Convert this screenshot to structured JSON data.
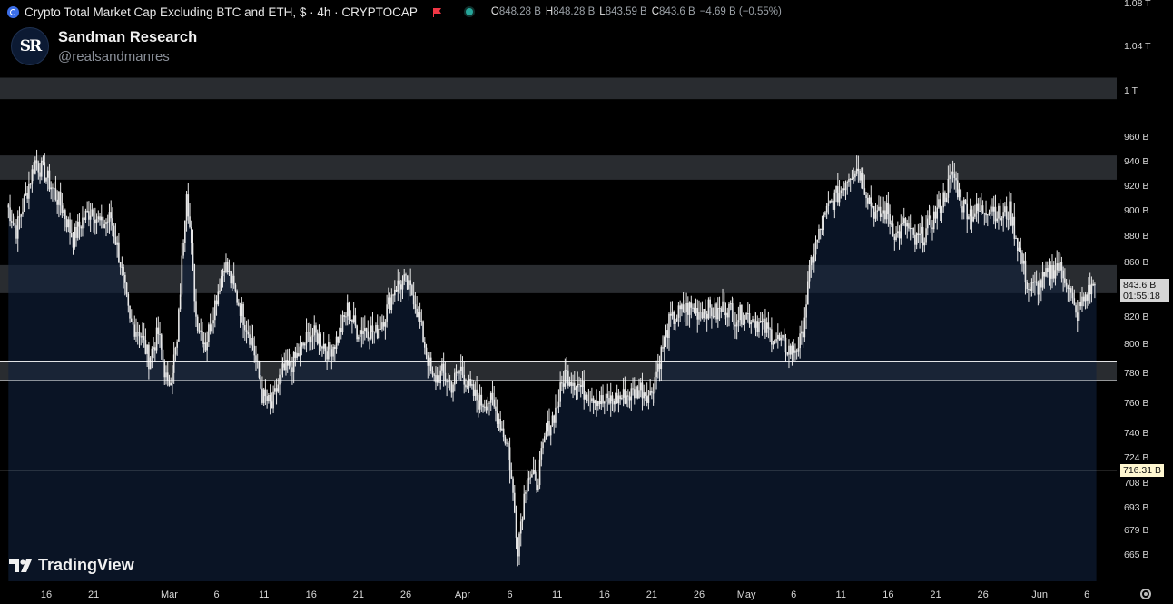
{
  "header": {
    "title": "Crypto Total Market Cap Excluding BTC and ETH, $ · 4h · CRYPTOCAP",
    "ohlc": {
      "o_label": "O",
      "o": "848.28 B",
      "h_label": "H",
      "h": "848.28 B",
      "l_label": "L",
      "l": "843.59 B",
      "c_label": "C",
      "c": "843.6 B",
      "change": "−4.69 B (−0.55%)"
    },
    "accent_color": "#3b6ee8",
    "flag_color": "#f23645",
    "status_color": "#26a69a"
  },
  "brand": {
    "logo_text": "SR",
    "name": "Sandman Research",
    "handle": "@realsandmanres"
  },
  "watermark": "TradingView",
  "price_label": {
    "value": "843.6 B",
    "countdown": "01:55:18"
  },
  "level_label": {
    "value": "716.31 B"
  },
  "chart_data": {
    "type": "candlestick",
    "y_scale": "log",
    "ylim": [
      651,
      1090
    ],
    "y_ticks": [
      "1.08 T",
      "1.04 T",
      "1 T",
      "960 B",
      "940 B",
      "920 B",
      "900 B",
      "880 B",
      "860 B",
      "820 B",
      "800 B",
      "780 B",
      "760 B",
      "740 B",
      "724 B",
      "708 B",
      "693 B",
      "679 B",
      "665 B"
    ],
    "y_tick_values": [
      1080,
      1040,
      1000,
      960,
      940,
      920,
      900,
      880,
      860,
      820,
      800,
      780,
      760,
      740,
      724,
      708,
      693,
      679,
      665
    ],
    "x_ticks": [
      "16",
      "21",
      "Mar",
      "6",
      "11",
      "16",
      "21",
      "26",
      "Apr",
      "6",
      "11",
      "16",
      "21",
      "26",
      "May",
      "6",
      "11",
      "16",
      "21",
      "26",
      "Jun",
      "6"
    ],
    "x_tick_dates": [
      "2025-02-16",
      "2025-02-21",
      "2025-03-01",
      "2025-03-06",
      "2025-03-11",
      "2025-03-16",
      "2025-03-21",
      "2025-03-26",
      "2025-04-01",
      "2025-04-06",
      "2025-04-11",
      "2025-04-16",
      "2025-04-21",
      "2025-04-26",
      "2025-05-01",
      "2025-05-06",
      "2025-05-11",
      "2025-05-16",
      "2025-05-21",
      "2025-05-26",
      "2025-06-01",
      "2025-06-06"
    ],
    "close_path": [
      [
        "2025-02-12",
        905
      ],
      [
        "2025-02-13",
        885
      ],
      [
        "2025-02-14",
        912
      ],
      [
        "2025-02-15",
        940
      ],
      [
        "2025-02-16",
        930
      ],
      [
        "2025-02-17",
        915
      ],
      [
        "2025-02-18",
        900
      ],
      [
        "2025-02-19",
        878
      ],
      [
        "2025-02-20",
        893
      ],
      [
        "2025-02-21",
        902
      ],
      [
        "2025-02-22",
        888
      ],
      [
        "2025-02-23",
        895
      ],
      [
        "2025-02-24",
        860
      ],
      [
        "2025-02-25",
        815
      ],
      [
        "2025-02-26",
        810
      ],
      [
        "2025-02-27",
        790
      ],
      [
        "2025-02-28",
        808
      ],
      [
        "2025-03-01",
        770
      ],
      [
        "2025-03-02",
        800
      ],
      [
        "2025-03-03",
        920
      ],
      [
        "2025-03-04",
        820
      ],
      [
        "2025-03-05",
        800
      ],
      [
        "2025-03-06",
        830
      ],
      [
        "2025-03-07",
        860
      ],
      [
        "2025-03-08",
        840
      ],
      [
        "2025-03-09",
        820
      ],
      [
        "2025-03-10",
        800
      ],
      [
        "2025-03-11",
        765
      ],
      [
        "2025-03-12",
        757
      ],
      [
        "2025-03-13",
        780
      ],
      [
        "2025-03-14",
        785
      ],
      [
        "2025-03-15",
        795
      ],
      [
        "2025-03-16",
        808
      ],
      [
        "2025-03-17",
        805
      ],
      [
        "2025-03-18",
        795
      ],
      [
        "2025-03-19",
        805
      ],
      [
        "2025-03-20",
        825
      ],
      [
        "2025-03-21",
        810
      ],
      [
        "2025-03-22",
        812
      ],
      [
        "2025-03-23",
        808
      ],
      [
        "2025-03-24",
        822
      ],
      [
        "2025-03-25",
        842
      ],
      [
        "2025-03-26",
        845
      ],
      [
        "2025-03-27",
        835
      ],
      [
        "2025-03-28",
        805
      ],
      [
        "2025-03-29",
        775
      ],
      [
        "2025-03-30",
        780
      ],
      [
        "2025-03-31",
        772
      ],
      [
        "2025-04-01",
        783
      ],
      [
        "2025-04-02",
        768
      ],
      [
        "2025-04-03",
        760
      ],
      [
        "2025-04-04",
        762
      ],
      [
        "2025-04-05",
        750
      ],
      [
        "2025-04-06",
        730
      ],
      [
        "2025-04-07",
        670
      ],
      [
        "2025-04-08",
        715
      ],
      [
        "2025-04-09",
        708
      ],
      [
        "2025-04-10",
        740
      ],
      [
        "2025-04-11",
        755
      ],
      [
        "2025-04-12",
        780
      ],
      [
        "2025-04-13",
        775
      ],
      [
        "2025-04-14",
        768
      ],
      [
        "2025-04-15",
        765
      ],
      [
        "2025-04-16",
        760
      ],
      [
        "2025-04-17",
        762
      ],
      [
        "2025-04-18",
        764
      ],
      [
        "2025-04-19",
        766
      ],
      [
        "2025-04-20",
        770
      ],
      [
        "2025-04-21",
        765
      ],
      [
        "2025-04-22",
        790
      ],
      [
        "2025-04-23",
        815
      ],
      [
        "2025-04-24",
        822
      ],
      [
        "2025-04-25",
        826
      ],
      [
        "2025-04-26",
        824
      ],
      [
        "2025-04-27",
        826
      ],
      [
        "2025-04-28",
        822
      ],
      [
        "2025-04-29",
        828
      ],
      [
        "2025-04-30",
        820
      ],
      [
        "2025-05-01",
        822
      ],
      [
        "2025-05-02",
        818
      ],
      [
        "2025-05-03",
        812
      ],
      [
        "2025-05-04",
        806
      ],
      [
        "2025-05-05",
        800
      ],
      [
        "2025-05-06",
        795
      ],
      [
        "2025-05-07",
        803
      ],
      [
        "2025-05-08",
        860
      ],
      [
        "2025-05-09",
        885
      ],
      [
        "2025-05-10",
        905
      ],
      [
        "2025-05-11",
        915
      ],
      [
        "2025-05-12",
        930
      ],
      [
        "2025-05-13",
        935
      ],
      [
        "2025-05-14",
        912
      ],
      [
        "2025-05-15",
        895
      ],
      [
        "2025-05-16",
        900
      ],
      [
        "2025-05-17",
        880
      ],
      [
        "2025-05-18",
        890
      ],
      [
        "2025-05-19",
        875
      ],
      [
        "2025-05-20",
        882
      ],
      [
        "2025-05-21",
        895
      ],
      [
        "2025-05-22",
        910
      ],
      [
        "2025-05-23",
        930
      ],
      [
        "2025-05-24",
        905
      ],
      [
        "2025-05-25",
        898
      ],
      [
        "2025-05-26",
        900
      ],
      [
        "2025-05-27",
        905
      ],
      [
        "2025-05-28",
        895
      ],
      [
        "2025-05-29",
        900
      ],
      [
        "2025-05-30",
        870
      ],
      [
        "2025-05-31",
        840
      ],
      [
        "2025-06-01",
        842
      ],
      [
        "2025-06-02",
        850
      ],
      [
        "2025-06-03",
        858
      ],
      [
        "2025-06-04",
        848
      ],
      [
        "2025-06-05",
        820
      ],
      [
        "2025-06-06",
        835
      ],
      [
        "2025-06-07",
        843.6
      ]
    ],
    "zones": [
      {
        "low": 993,
        "high": 1012
      },
      {
        "low": 925,
        "high": 945
      },
      {
        "low": 837,
        "high": 858
      },
      {
        "low": 775,
        "high": 788
      }
    ],
    "hlines": [
      788,
      775,
      716.31
    ],
    "colors": {
      "background": "#000000",
      "area_fill": "#0b1527",
      "candle": "#e8e8e8",
      "zone": "#333333",
      "hline": "#ffffff"
    }
  }
}
